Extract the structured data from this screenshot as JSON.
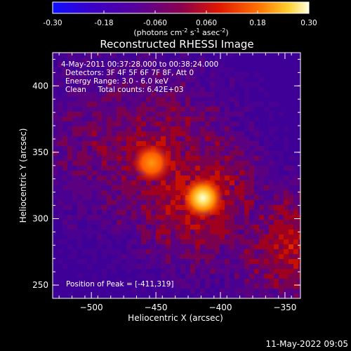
{
  "colorbar": {
    "ticks": [
      "-0.30",
      "-0.18",
      "-0.060",
      "0.060",
      "0.18",
      "0.30"
    ],
    "tick_values": [
      -0.3,
      -0.18,
      -0.06,
      0.06,
      0.18,
      0.3
    ],
    "range": [
      -0.3,
      0.3
    ],
    "units_prefix": "(photons cm",
    "units_exp1": "-2",
    "units_mid": " s",
    "units_exp2": "-1",
    "units_mid2": " asec",
    "units_exp3": "-2",
    "units_suffix": ")",
    "colors": [
      "#1010ff",
      "#3b00b0",
      "#5a0090",
      "#9a0040",
      "#e02000",
      "#ff6000",
      "#ffc000",
      "#ffffc0"
    ]
  },
  "chart_data": {
    "type": "heatmap",
    "title": "Reconstructed RHESSI Image",
    "xlabel": "Heliocentric X (arcsec)",
    "ylabel": "Heliocentric Y (arcsec)",
    "xlim": [
      -530,
      -338
    ],
    "ylim": [
      240,
      425
    ],
    "x_ticks": [
      -500,
      -450,
      -400,
      -350
    ],
    "x_tick_labels": [
      "−500",
      "−450",
      "−400",
      "−350"
    ],
    "y_ticks": [
      250,
      300,
      350,
      400
    ],
    "y_tick_labels": [
      "250",
      "300",
      "350",
      "400"
    ],
    "annotations": [
      "4-May-2011 00:37:28.000 to 00:38:24.000",
      "Detectors: 3F 4F 5F 6F 7F 8F, Att 0",
      "Energy Range: 3.0 - 6.0 keV",
      "Clean     Total counts: 6.42E+03"
    ],
    "peak_label": "Position of Peak = [-411,319]",
    "peak": [
      -411,
      319
    ],
    "secondary_source": [
      -452,
      350
    ],
    "grid": false
  },
  "footer": {
    "timestamp": "11-May-2022 09:05"
  }
}
